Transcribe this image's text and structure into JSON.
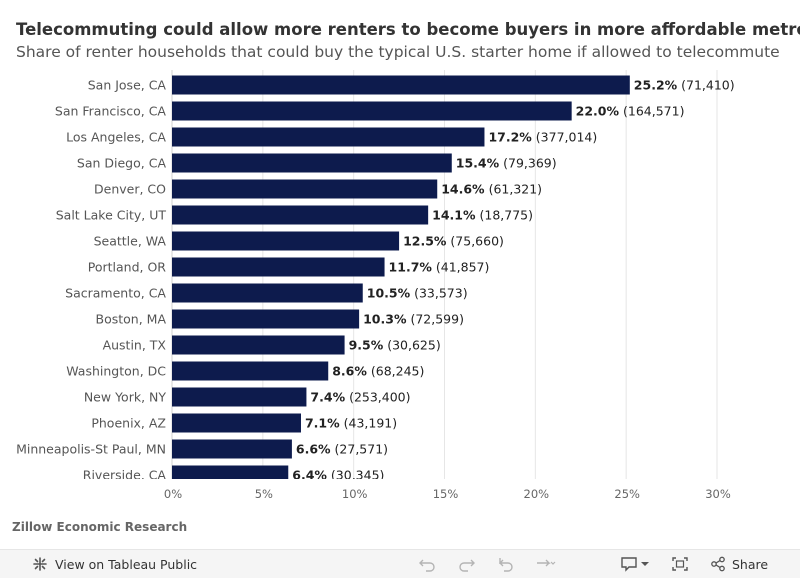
{
  "title": "Telecommuting could allow more renters to become buyers in more affordable metros",
  "subtitle": "Share of renter households that could buy the typical U.S. starter home if allowed to telecommute",
  "source": "Zillow Economic Research",
  "toolbar": {
    "view_label": "View on Tableau Public",
    "share_label": "Share"
  },
  "colors": {
    "bar": "#0d1b4d",
    "gridline": "#e6e6e6",
    "toolbar_bg": "#f5f5f5"
  },
  "chart_data": {
    "type": "bar",
    "orientation": "horizontal",
    "categories": [
      "San Jose, CA",
      "San Francisco, CA",
      "Los Angeles, CA",
      "San Diego, CA",
      "Denver, CO",
      "Salt Lake City, UT",
      "Seattle, WA",
      "Portland, OR",
      "Sacramento, CA",
      "Boston, MA",
      "Austin, TX",
      "Washington, DC",
      "New York, NY",
      "Phoenix, AZ",
      "Minneapolis-St Paul, MN",
      "Riverside, CA"
    ],
    "values": [
      25.2,
      22.0,
      17.2,
      15.4,
      14.6,
      14.1,
      12.5,
      11.7,
      10.5,
      10.3,
      9.5,
      8.6,
      7.4,
      7.1,
      6.6,
      6.4
    ],
    "value_labels": [
      "25.2%",
      "22.0%",
      "17.2%",
      "15.4%",
      "14.6%",
      "14.1%",
      "12.5%",
      "11.7%",
      "10.5%",
      "10.3%",
      "9.5%",
      "8.6%",
      "7.4%",
      "7.1%",
      "6.6%",
      "6.4%"
    ],
    "count_labels": [
      "(71,410)",
      "(164,571)",
      "(377,014)",
      "(79,369)",
      "(61,321)",
      "(18,775)",
      "(75,660)",
      "(41,857)",
      "(33,573)",
      "(72,599)",
      "(30,625)",
      "(68,245)",
      "(253,400)",
      "(43,191)",
      "(27,571)",
      "(30,345)"
    ],
    "xticks": [
      0,
      5,
      10,
      15,
      20,
      25,
      30
    ],
    "xtick_labels": [
      "0%",
      "5%",
      "10%",
      "15%",
      "20%",
      "25%",
      "30%"
    ],
    "xlim": [
      0,
      30
    ],
    "grid": true,
    "xlabel": "",
    "ylabel": ""
  }
}
